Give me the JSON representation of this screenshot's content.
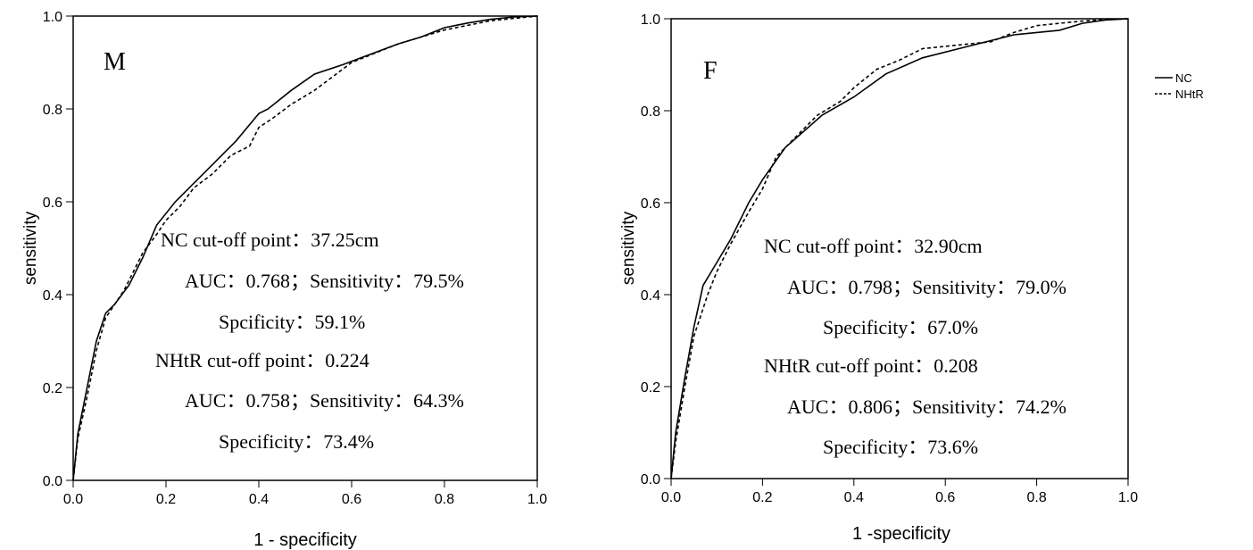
{
  "chart_data": [
    {
      "type": "line",
      "panel_label": "M",
      "xlabel": "1 - specificity",
      "ylabel": "sensitivity",
      "xlim": [
        0,
        1
      ],
      "ylim": [
        0,
        1
      ],
      "x_ticks": [
        "0.0",
        "0.2",
        "0.4",
        "0.6",
        "0.8",
        "1.0"
      ],
      "y_ticks": [
        "0.0",
        "0.2",
        "0.4",
        "0.6",
        "0.8",
        "1.0"
      ],
      "grid": false,
      "series": [
        {
          "name": "NC",
          "style": "solid",
          "points": [
            [
              0,
              0
            ],
            [
              0.01,
              0.1
            ],
            [
              0.03,
              0.2
            ],
            [
              0.05,
              0.3
            ],
            [
              0.07,
              0.36
            ],
            [
              0.09,
              0.38
            ],
            [
              0.12,
              0.42
            ],
            [
              0.15,
              0.48
            ],
            [
              0.18,
              0.55
            ],
            [
              0.22,
              0.6
            ],
            [
              0.25,
              0.63
            ],
            [
              0.3,
              0.68
            ],
            [
              0.35,
              0.73
            ],
            [
              0.4,
              0.79
            ],
            [
              0.42,
              0.8
            ],
            [
              0.47,
              0.84
            ],
            [
              0.52,
              0.875
            ],
            [
              0.58,
              0.895
            ],
            [
              0.62,
              0.91
            ],
            [
              0.7,
              0.94
            ],
            [
              0.75,
              0.955
            ],
            [
              0.8,
              0.975
            ],
            [
              0.85,
              0.985
            ],
            [
              0.9,
              0.993
            ],
            [
              0.95,
              0.998
            ],
            [
              1,
              1
            ]
          ]
        },
        {
          "name": "NHtR",
          "style": "dashed",
          "points": [
            [
              0,
              0
            ],
            [
              0.01,
              0.09
            ],
            [
              0.03,
              0.18
            ],
            [
              0.05,
              0.28
            ],
            [
              0.07,
              0.35
            ],
            [
              0.09,
              0.38
            ],
            [
              0.11,
              0.41
            ],
            [
              0.13,
              0.45
            ],
            [
              0.15,
              0.49
            ],
            [
              0.18,
              0.53
            ],
            [
              0.2,
              0.56
            ],
            [
              0.23,
              0.59
            ],
            [
              0.26,
              0.63
            ],
            [
              0.3,
              0.66
            ],
            [
              0.34,
              0.7
            ],
            [
              0.38,
              0.72
            ],
            [
              0.4,
              0.76
            ],
            [
              0.43,
              0.78
            ],
            [
              0.47,
              0.81
            ],
            [
              0.52,
              0.84
            ],
            [
              0.56,
              0.87
            ],
            [
              0.6,
              0.9
            ],
            [
              0.65,
              0.92
            ],
            [
              0.7,
              0.94
            ],
            [
              0.75,
              0.955
            ],
            [
              0.8,
              0.97
            ],
            [
              0.85,
              0.98
            ],
            [
              0.9,
              0.99
            ],
            [
              0.95,
              0.995
            ],
            [
              1,
              1
            ]
          ]
        }
      ],
      "annotations": [
        {
          "lines": [
            "NC cut-off point：37.25cm",
            "AUC：0.768；Sensitivity：79.5%",
            "Spcificity：59.1%",
            "NHtR cut-off point：0.224",
            "AUC：0.758；Sensitivity：64.3%",
            "Specificity：73.4%"
          ]
        }
      ]
    },
    {
      "type": "line",
      "panel_label": "F",
      "xlabel": "1 -specificity",
      "ylabel": "sensitivity",
      "xlim": [
        0,
        1
      ],
      "ylim": [
        0,
        1
      ],
      "x_ticks": [
        "0.0",
        "0.2",
        "0.4",
        "0.6",
        "0.8",
        "1.0"
      ],
      "y_ticks": [
        "0.0",
        "0.2",
        "0.4",
        "0.6",
        "0.8",
        "1.0"
      ],
      "grid": false,
      "legend": {
        "placement": "right",
        "entries": [
          {
            "name": "NC",
            "style": "solid"
          },
          {
            "name": "NHtR",
            "style": "dashed"
          }
        ]
      },
      "series": [
        {
          "name": "NC",
          "style": "solid",
          "points": [
            [
              0,
              0
            ],
            [
              0.01,
              0.1
            ],
            [
              0.03,
              0.22
            ],
            [
              0.05,
              0.33
            ],
            [
              0.07,
              0.42
            ],
            [
              0.1,
              0.47
            ],
            [
              0.13,
              0.52
            ],
            [
              0.17,
              0.6
            ],
            [
              0.2,
              0.65
            ],
            [
              0.25,
              0.72
            ],
            [
              0.33,
              0.79
            ],
            [
              0.4,
              0.83
            ],
            [
              0.47,
              0.88
            ],
            [
              0.55,
              0.915
            ],
            [
              0.65,
              0.94
            ],
            [
              0.75,
              0.965
            ],
            [
              0.8,
              0.97
            ],
            [
              0.85,
              0.975
            ],
            [
              0.9,
              0.99
            ],
            [
              0.95,
              0.997
            ],
            [
              1,
              1
            ]
          ]
        },
        {
          "name": "NHtR",
          "style": "dashed",
          "points": [
            [
              0,
              0
            ],
            [
              0.01,
              0.08
            ],
            [
              0.03,
              0.2
            ],
            [
              0.05,
              0.31
            ],
            [
              0.08,
              0.4
            ],
            [
              0.1,
              0.45
            ],
            [
              0.13,
              0.51
            ],
            [
              0.17,
              0.58
            ],
            [
              0.2,
              0.63
            ],
            [
              0.23,
              0.7
            ],
            [
              0.27,
              0.74
            ],
            [
              0.32,
              0.79
            ],
            [
              0.37,
              0.82
            ],
            [
              0.4,
              0.85
            ],
            [
              0.45,
              0.89
            ],
            [
              0.5,
              0.91
            ],
            [
              0.55,
              0.935
            ],
            [
              0.6,
              0.94
            ],
            [
              0.65,
              0.945
            ],
            [
              0.7,
              0.95
            ],
            [
              0.75,
              0.97
            ],
            [
              0.8,
              0.985
            ],
            [
              0.85,
              0.99
            ],
            [
              0.9,
              0.995
            ],
            [
              0.95,
              0.998
            ],
            [
              1,
              1
            ]
          ]
        }
      ],
      "annotations": [
        {
          "lines": [
            "NC cut-off point：32.90cm",
            "AUC：0.798；Sensitivity：79.0%",
            "Specificity：67.0%",
            "NHtR cut-off point：0.208",
            "AUC：0.806；Sensitivity：74.2%",
            "Specificity：73.6%"
          ]
        }
      ]
    }
  ]
}
